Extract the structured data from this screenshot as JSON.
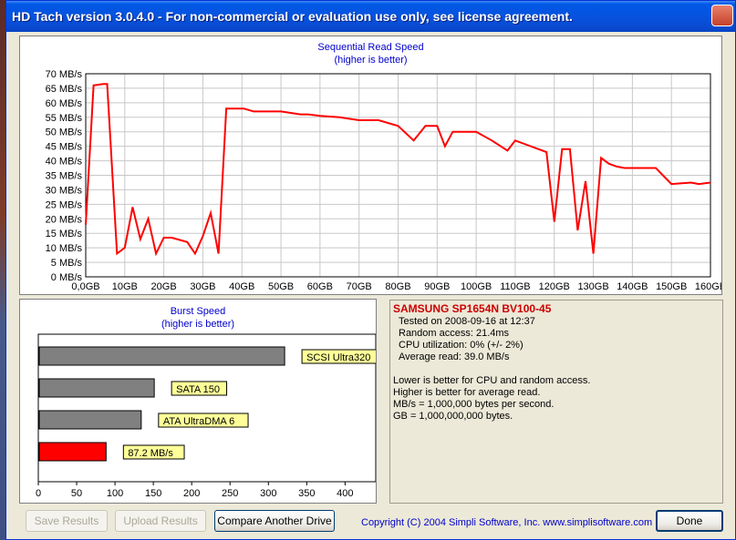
{
  "window": {
    "title": "HD Tach version 3.0.4.0  - For non-commercial or evaluation use only, see license agreement."
  },
  "sequential": {
    "title": "Sequential Read Speed",
    "subtitle": "(higher is better)"
  },
  "burst": {
    "title": "Burst Speed",
    "subtitle": "(higher is better)"
  },
  "info": {
    "drive": "SAMSUNG SP1654N BV100-45",
    "tested": "Tested on 2008-09-16 at 12:37",
    "random_access": "Random access: 21.4ms",
    "cpu": "CPU utilization: 0% (+/- 2%)",
    "avg_read": "Average read: 39.0 MB/s",
    "notes": [
      "Lower is better for CPU and random access.",
      "Higher is better for average read.",
      "MB/s = 1,000,000 bytes per second.",
      "GB = 1,000,000,000 bytes."
    ]
  },
  "buttons": {
    "save": "Save Results",
    "upload": "Upload Results",
    "compare": "Compare Another Drive",
    "done": "Done"
  },
  "copyright": "Copyright (C) 2004 Simpli Software, Inc. www.simplisoftware.com",
  "colors": {
    "series": "#ff0000",
    "bar_gray": "#808080",
    "bar_red": "#ff0000",
    "label_bg": "#ffff99",
    "title_blue": "#0000cc"
  },
  "chart_data": [
    {
      "type": "line",
      "title": "Sequential Read Speed",
      "subtitle": "(higher is better)",
      "ylim": [
        0,
        70
      ],
      "xlim": [
        0,
        160
      ],
      "y_ticks": [
        "0 MB/s",
        "5 MB/s",
        "10 MB/s",
        "15 MB/s",
        "20 MB/s",
        "25 MB/s",
        "30 MB/s",
        "35 MB/s",
        "40 MB/s",
        "45 MB/s",
        "50 MB/s",
        "55 MB/s",
        "60 MB/s",
        "65 MB/s",
        "70 MB/s"
      ],
      "x_ticks": [
        "0,0GB",
        "10GB",
        "20GB",
        "30GB",
        "40GB",
        "50GB",
        "60GB",
        "70GB",
        "80GB",
        "90GB",
        "100GB",
        "110GB",
        "120GB",
        "130GB",
        "140GB",
        "150GB",
        "160GB"
      ],
      "grid": true,
      "series": [
        {
          "x": [
            0,
            2,
            4.5,
            5.5,
            8,
            10,
            12,
            14,
            16,
            18,
            20,
            22,
            26,
            28,
            30,
            32,
            34,
            36,
            39,
            40.5,
            43,
            47,
            50,
            55,
            57,
            60,
            65,
            70,
            75,
            80,
            84,
            87,
            90,
            92,
            94,
            96,
            98,
            100,
            104,
            108,
            110,
            112,
            118,
            120,
            122,
            124,
            126,
            128,
            130,
            132,
            134,
            136,
            138,
            140,
            146,
            150,
            155,
            157,
            160
          ],
          "y": [
            18,
            66,
            66.5,
            66.5,
            8,
            10,
            24,
            13,
            20,
            8,
            13.5,
            13.5,
            12,
            8,
            14,
            22,
            8,
            58,
            58,
            58,
            57,
            57,
            57,
            56,
            56,
            55.5,
            55,
            54,
            54,
            52,
            47,
            52,
            52,
            45,
            50,
            50,
            50,
            50,
            47,
            43.5,
            47,
            46,
            43,
            19,
            44,
            44,
            16,
            33,
            8,
            41,
            39,
            38,
            37.5,
            37.5,
            37.5,
            32,
            32.5,
            32,
            32.5
          ]
        }
      ]
    },
    {
      "type": "bar",
      "title": "Burst Speed",
      "subtitle": "(higher is better)",
      "xlim": [
        0,
        440
      ],
      "x_ticks": [
        "0",
        "50",
        "100",
        "150",
        "200",
        "250",
        "300",
        "350",
        "400"
      ],
      "categories": [
        "SCSI Ultra320",
        "SATA 150",
        "ATA UltraDMA 6",
        "87.2 MB/s"
      ],
      "values": [
        320,
        150,
        133,
        87.2
      ]
    }
  ]
}
